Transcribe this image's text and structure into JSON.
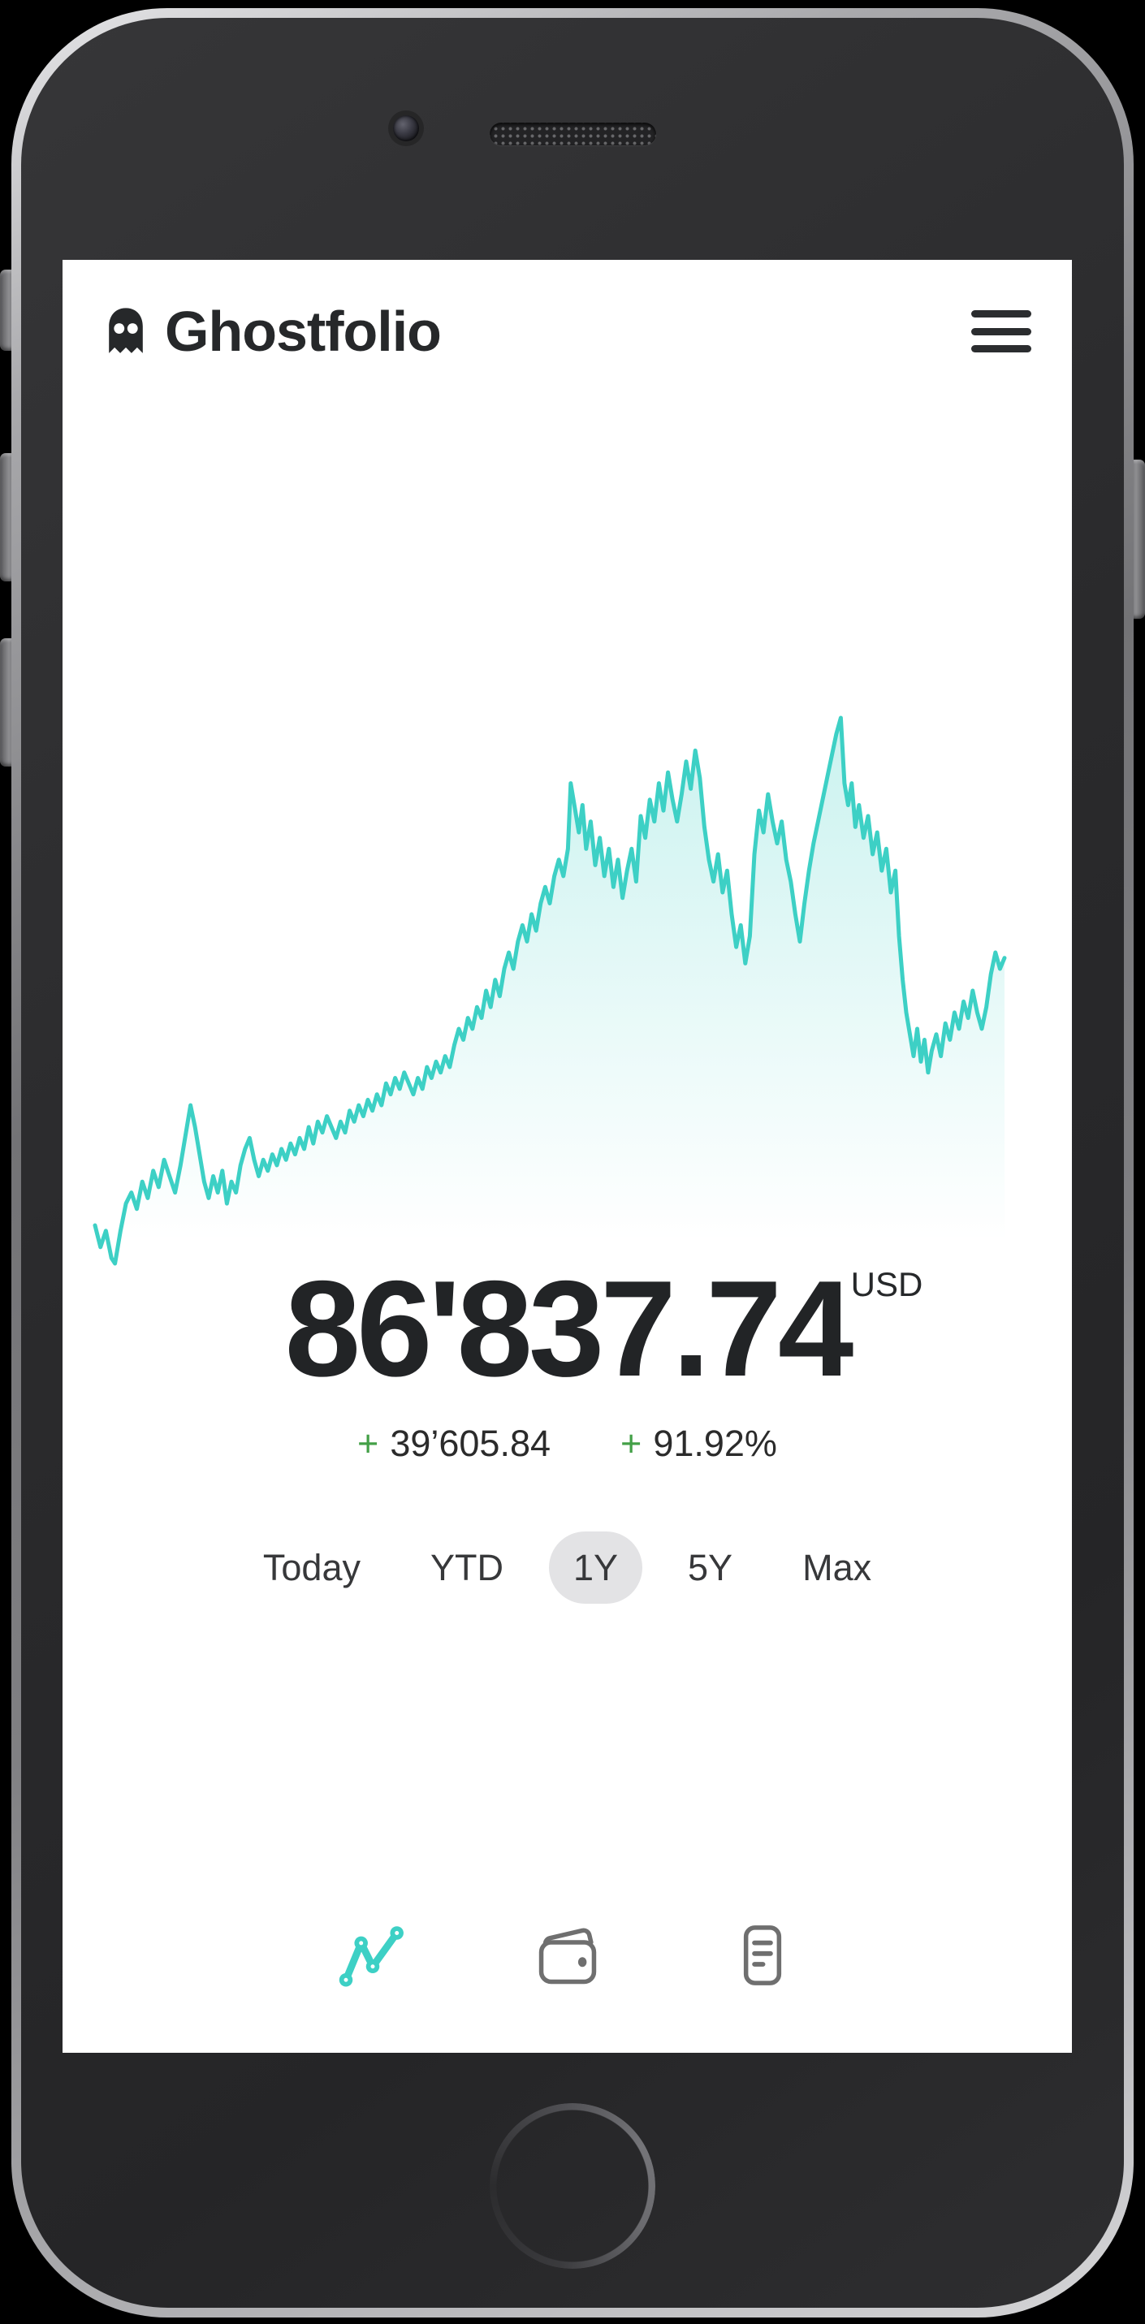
{
  "header": {
    "app_name": "Ghostfolio",
    "logo_icon": "ghost-logo-icon",
    "menu_icon": "hamburger-menu-icon"
  },
  "portfolio": {
    "total_value": "86'837.74",
    "currency": "USD",
    "change_absolute_sign": "+",
    "change_absolute": "39’605.84",
    "change_percent_sign": "+",
    "change_percent": "91.92%"
  },
  "range_selector": {
    "options": [
      {
        "label": "Today",
        "selected": false
      },
      {
        "label": "YTD",
        "selected": false
      },
      {
        "label": "1Y",
        "selected": true
      },
      {
        "label": "5Y",
        "selected": false
      },
      {
        "label": "Max",
        "selected": false
      }
    ]
  },
  "tab_bar": {
    "tabs": [
      {
        "name": "overview",
        "icon": "line-chart-icon",
        "active": true
      },
      {
        "name": "wallet",
        "icon": "wallet-icon",
        "active": false
      },
      {
        "name": "transactions",
        "icon": "list-document-icon",
        "active": false
      }
    ]
  },
  "colors": {
    "accent_teal": "#3dd0c5",
    "area_fill_top": "rgba(61,208,197,0.27)",
    "area_fill_bottom": "rgba(61,208,197,0)",
    "positive_green": "#43a047",
    "text_dark": "#222426",
    "pill_gray": "#e3e3e5",
    "inactive_icon_gray": "#6f6f6f"
  },
  "chart_data": {
    "type": "area",
    "title": "",
    "xlabel": "",
    "ylabel": "",
    "legend": false,
    "grid": false,
    "axes_hidden": true,
    "selected_range": "1Y",
    "x_meaning": "time_percent_of_range",
    "y_meaning": "normalized_portfolio_value_percent (0=low, 100=high)",
    "points": [
      [
        0,
        7
      ],
      [
        0.6,
        3
      ],
      [
        1.2,
        6
      ],
      [
        1.8,
        1
      ],
      [
        2.2,
        0
      ],
      [
        2.8,
        6
      ],
      [
        3.4,
        11
      ],
      [
        4,
        13
      ],
      [
        4.6,
        10
      ],
      [
        5.2,
        15
      ],
      [
        5.8,
        12
      ],
      [
        6.4,
        17
      ],
      [
        7,
        14
      ],
      [
        7.6,
        19
      ],
      [
        8.2,
        16
      ],
      [
        8.8,
        13
      ],
      [
        9.4,
        18
      ],
      [
        10,
        24
      ],
      [
        10.5,
        29
      ],
      [
        11,
        25
      ],
      [
        11.5,
        20
      ],
      [
        12,
        15
      ],
      [
        12.5,
        12
      ],
      [
        13,
        16
      ],
      [
        13.5,
        13
      ],
      [
        14,
        17
      ],
      [
        14.5,
        11
      ],
      [
        15,
        15
      ],
      [
        15.5,
        13
      ],
      [
        16,
        18
      ],
      [
        16.5,
        21
      ],
      [
        17,
        23
      ],
      [
        17.5,
        19
      ],
      [
        18,
        16
      ],
      [
        18.5,
        19
      ],
      [
        19,
        17
      ],
      [
        19.5,
        20
      ],
      [
        20,
        18
      ],
      [
        20.5,
        21
      ],
      [
        21,
        19
      ],
      [
        21.5,
        22
      ],
      [
        22,
        20
      ],
      [
        22.5,
        23
      ],
      [
        23,
        21
      ],
      [
        23.5,
        25
      ],
      [
        24,
        22
      ],
      [
        24.5,
        26
      ],
      [
        25,
        24
      ],
      [
        25.5,
        27
      ],
      [
        26,
        25
      ],
      [
        26.5,
        23
      ],
      [
        27,
        26
      ],
      [
        27.5,
        24
      ],
      [
        28,
        28
      ],
      [
        28.5,
        26
      ],
      [
        29,
        29
      ],
      [
        29.5,
        27
      ],
      [
        30,
        30
      ],
      [
        30.5,
        28
      ],
      [
        31,
        31
      ],
      [
        31.5,
        29
      ],
      [
        32,
        33
      ],
      [
        32.5,
        31
      ],
      [
        33,
        34
      ],
      [
        33.5,
        32
      ],
      [
        34,
        35
      ],
      [
        34.5,
        33
      ],
      [
        35,
        31
      ],
      [
        35.5,
        34
      ],
      [
        36,
        32
      ],
      [
        36.5,
        36
      ],
      [
        37,
        34
      ],
      [
        37.5,
        37
      ],
      [
        38,
        35
      ],
      [
        38.5,
        38
      ],
      [
        39,
        36
      ],
      [
        39.5,
        40
      ],
      [
        40,
        43
      ],
      [
        40.5,
        41
      ],
      [
        41,
        45
      ],
      [
        41.5,
        43
      ],
      [
        42,
        47
      ],
      [
        42.5,
        45
      ],
      [
        43,
        50
      ],
      [
        43.5,
        47
      ],
      [
        44,
        52
      ],
      [
        44.5,
        49
      ],
      [
        45,
        54
      ],
      [
        45.5,
        57
      ],
      [
        46,
        54
      ],
      [
        46.5,
        59
      ],
      [
        47,
        62
      ],
      [
        47.5,
        59
      ],
      [
        48,
        64
      ],
      [
        48.5,
        61
      ],
      [
        49,
        66
      ],
      [
        49.5,
        69
      ],
      [
        50,
        66
      ],
      [
        50.5,
        71
      ],
      [
        51,
        74
      ],
      [
        51.5,
        71
      ],
      [
        52,
        76
      ],
      [
        52.3,
        88
      ],
      [
        52.8,
        83
      ],
      [
        53.2,
        79
      ],
      [
        53.6,
        84
      ],
      [
        54,
        76
      ],
      [
        54.5,
        81
      ],
      [
        55,
        73
      ],
      [
        55.5,
        78
      ],
      [
        56,
        71
      ],
      [
        56.5,
        76
      ],
      [
        57,
        69
      ],
      [
        57.5,
        74
      ],
      [
        58,
        67
      ],
      [
        58.5,
        72
      ],
      [
        59,
        76
      ],
      [
        59.5,
        70
      ],
      [
        60,
        82
      ],
      [
        60.5,
        78
      ],
      [
        61,
        85
      ],
      [
        61.5,
        81
      ],
      [
        62,
        88
      ],
      [
        62.5,
        83
      ],
      [
        63,
        90
      ],
      [
        63.5,
        85
      ],
      [
        64,
        81
      ],
      [
        64.5,
        86
      ],
      [
        65,
        92
      ],
      [
        65.5,
        87
      ],
      [
        66,
        94
      ],
      [
        66.5,
        89
      ],
      [
        67,
        80
      ],
      [
        67.5,
        74
      ],
      [
        68,
        70
      ],
      [
        68.5,
        75
      ],
      [
        69,
        68
      ],
      [
        69.5,
        72
      ],
      [
        70,
        64
      ],
      [
        70.5,
        58
      ],
      [
        71,
        62
      ],
      [
        71.5,
        55
      ],
      [
        72,
        60
      ],
      [
        72.5,
        75
      ],
      [
        73,
        83
      ],
      [
        73.5,
        79
      ],
      [
        74,
        86
      ],
      [
        74.5,
        81
      ],
      [
        75,
        77
      ],
      [
        75.5,
        81
      ],
      [
        76,
        74
      ],
      [
        76.5,
        70
      ],
      [
        77,
        64
      ],
      [
        77.5,
        59
      ],
      [
        78,
        66
      ],
      [
        78.5,
        72
      ],
      [
        79,
        77
      ],
      [
        79.5,
        81
      ],
      [
        80,
        85
      ],
      [
        80.5,
        89
      ],
      [
        81,
        93
      ],
      [
        81.5,
        97
      ],
      [
        82,
        100
      ],
      [
        82.4,
        88
      ],
      [
        82.8,
        84
      ],
      [
        83.2,
        88
      ],
      [
        83.6,
        80
      ],
      [
        84,
        84
      ],
      [
        84.5,
        78
      ],
      [
        85,
        82
      ],
      [
        85.5,
        75
      ],
      [
        86,
        79
      ],
      [
        86.5,
        72
      ],
      [
        87,
        76
      ],
      [
        87.5,
        68
      ],
      [
        88,
        72
      ],
      [
        88.4,
        60
      ],
      [
        88.8,
        52
      ],
      [
        89.2,
        46
      ],
      [
        89.6,
        42
      ],
      [
        90,
        38
      ],
      [
        90.4,
        43
      ],
      [
        90.8,
        37
      ],
      [
        91.2,
        41
      ],
      [
        91.6,
        35
      ],
      [
        92,
        39
      ],
      [
        92.5,
        42
      ],
      [
        93,
        38
      ],
      [
        93.5,
        44
      ],
      [
        94,
        41
      ],
      [
        94.5,
        46
      ],
      [
        95,
        43
      ],
      [
        95.5,
        48
      ],
      [
        96,
        45
      ],
      [
        96.5,
        50
      ],
      [
        97,
        46
      ],
      [
        97.5,
        43
      ],
      [
        98,
        47
      ],
      [
        98.5,
        53
      ],
      [
        99,
        57
      ],
      [
        99.5,
        54
      ],
      [
        100,
        56
      ]
    ]
  }
}
